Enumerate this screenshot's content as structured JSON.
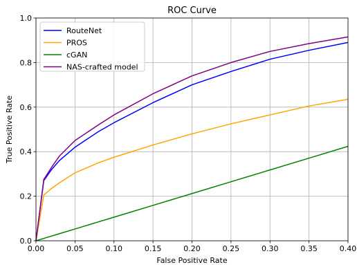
{
  "chart_data": {
    "type": "line",
    "title": "ROC Curve",
    "xlabel": "False Positive Rate",
    "ylabel": "True Positive Rate",
    "xlim": [
      0,
      0.4
    ],
    "ylim": [
      0,
      1.0
    ],
    "grid": true,
    "legend_position": "top-left",
    "x_ticks": [
      0.0,
      0.05,
      0.1,
      0.15,
      0.2,
      0.25,
      0.3,
      0.35,
      0.4
    ],
    "x_tick_labels": [
      "0.00",
      "0.05",
      "0.10",
      "0.15",
      "0.20",
      "0.25",
      "0.30",
      "0.35",
      "0.40"
    ],
    "y_ticks": [
      0.0,
      0.2,
      0.4,
      0.6,
      0.8,
      1.0
    ],
    "y_tick_labels": [
      "0.0",
      "0.2",
      "0.4",
      "0.6",
      "0.8",
      "1.0"
    ],
    "x": [
      0.0,
      0.01,
      0.02,
      0.03,
      0.05,
      0.08,
      0.1,
      0.15,
      0.2,
      0.25,
      0.3,
      0.35,
      0.4
    ],
    "series": [
      {
        "name": "RouteNet",
        "color": "#0000ff",
        "values": [
          0.0,
          0.27,
          0.32,
          0.36,
          0.42,
          0.49,
          0.53,
          0.62,
          0.7,
          0.76,
          0.815,
          0.855,
          0.89
        ]
      },
      {
        "name": "PROS",
        "color": "#ffa500",
        "values": [
          0.0,
          0.205,
          0.235,
          0.26,
          0.305,
          0.35,
          0.375,
          0.43,
          0.48,
          0.525,
          0.565,
          0.605,
          0.635
        ]
      },
      {
        "name": "cGAN",
        "color": "#008000",
        "values": [
          0.0,
          0.0106,
          0.0212,
          0.0318,
          0.053,
          0.0848,
          0.106,
          0.159,
          0.212,
          0.265,
          0.318,
          0.371,
          0.424
        ]
      },
      {
        "name": "NAS-crafted model",
        "color": "#800080",
        "values": [
          0.0,
          0.275,
          0.33,
          0.38,
          0.45,
          0.52,
          0.565,
          0.66,
          0.74,
          0.8,
          0.85,
          0.885,
          0.915
        ]
      }
    ]
  }
}
